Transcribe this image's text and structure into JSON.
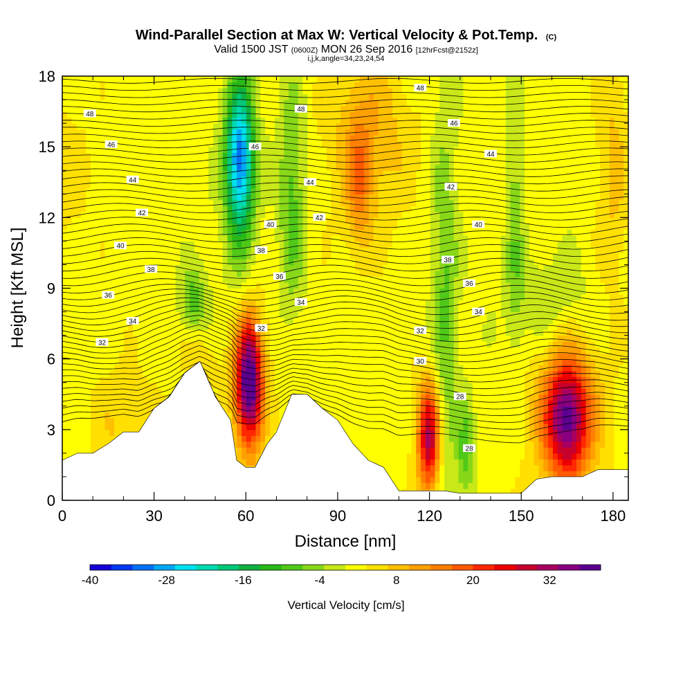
{
  "chart_data": {
    "type": "heatmap",
    "title": "Wind-Parallel Section at Max W: Vertical Velocity & Pot.Temp.",
    "title_mark": "(C)",
    "subtitle_valid": "Valid 1500 JST",
    "subtitle_utc": "(0600Z)",
    "subtitle_date": "MON 26 Sep 2016",
    "subtitle_fcst": "[12hrFcst@2152z]",
    "subtitle_indices": "i,j,k,angle=34,23,24,54",
    "xlabel": "Distance [nm]",
    "ylabel": "Height [Kft MSL]",
    "xlim": [
      0,
      185
    ],
    "ylim": [
      0,
      18
    ],
    "x_ticks": [
      "0",
      "30",
      "60",
      "90",
      "120",
      "150",
      "180"
    ],
    "y_ticks": [
      "0",
      "3",
      "6",
      "9",
      "12",
      "15",
      "18"
    ],
    "colorbar": {
      "title": "Vertical Velocity [cm/s]",
      "range": [
        -40,
        40
      ],
      "tick_labels": [
        "-40",
        "-28",
        "-16",
        "-4",
        "8",
        "20",
        "32"
      ],
      "colors": [
        "#1500d8",
        "#0038f0",
        "#0070f4",
        "#00a8f6",
        "#00e0f0",
        "#00d8b0",
        "#00c878",
        "#10b040",
        "#28b818",
        "#50c818",
        "#88d818",
        "#c8e818",
        "#ffff00",
        "#ffe000",
        "#ffc000",
        "#ffa000",
        "#ff8000",
        "#ff5a00",
        "#ff2800",
        "#ec0000",
        "#c8002c",
        "#a80060",
        "#880080",
        "#5c0090"
      ]
    },
    "terrain_profile": [
      [
        0,
        1.7
      ],
      [
        5,
        2.0
      ],
      [
        10,
        2.0
      ],
      [
        15,
        2.4
      ],
      [
        20,
        2.9
      ],
      [
        25,
        2.9
      ],
      [
        30,
        3.9
      ],
      [
        35,
        4.4
      ],
      [
        40,
        5.4
      ],
      [
        45,
        5.9
      ],
      [
        50,
        4.4
      ],
      [
        55,
        3.4
      ],
      [
        57,
        1.7
      ],
      [
        60,
        1.4
      ],
      [
        63,
        1.4
      ],
      [
        67,
        2.4
      ],
      [
        70,
        2.9
      ],
      [
        75,
        4.5
      ],
      [
        80,
        4.5
      ],
      [
        85,
        3.9
      ],
      [
        90,
        3.4
      ],
      [
        95,
        2.4
      ],
      [
        100,
        1.7
      ],
      [
        105,
        1.4
      ],
      [
        110,
        0.4
      ],
      [
        120,
        0.4
      ],
      [
        125,
        0.4
      ],
      [
        130,
        0.3
      ],
      [
        140,
        0.3
      ],
      [
        150,
        0.3
      ],
      [
        155,
        0.9
      ],
      [
        160,
        1.0
      ],
      [
        170,
        1.0
      ],
      [
        175,
        1.3
      ],
      [
        185,
        1.3
      ]
    ],
    "vertical_velocity_features": [
      {
        "x": 61,
        "z": 5.0,
        "sx": 3,
        "sz": 1.8,
        "w": 36
      },
      {
        "x": 61,
        "z": 4.8,
        "sx": 5,
        "sz": 2.8,
        "w": 6
      },
      {
        "x": 120,
        "z": 2.6,
        "sx": 2.5,
        "sz": 1.6,
        "w": 24
      },
      {
        "x": 120,
        "z": 2.7,
        "sx": 4,
        "sz": 2.4,
        "w": 6
      },
      {
        "x": 165,
        "z": 3.5,
        "sx": 5,
        "sz": 1.7,
        "w": 30
      },
      {
        "x": 165,
        "z": 3.5,
        "sx": 9,
        "sz": 2.8,
        "w": 8
      },
      {
        "x": 58,
        "z": 14.5,
        "sx": 3,
        "sz": 2.0,
        "w": -24
      },
      {
        "x": 58,
        "z": 14.0,
        "sx": 4,
        "sz": 3.5,
        "w": -10
      },
      {
        "x": 75,
        "z": 13.0,
        "sx": 3,
        "sz": 3.5,
        "w": -10
      },
      {
        "x": 97,
        "z": 13.5,
        "sx": 3,
        "sz": 2.0,
        "w": 10
      },
      {
        "x": 100,
        "z": 15.5,
        "sx": 10,
        "sz": 2.8,
        "w": 8
      },
      {
        "x": 125,
        "z": 7.5,
        "sx": 3,
        "sz": 7.0,
        "w": -9
      },
      {
        "x": 132,
        "z": 2.0,
        "sx": 2,
        "sz": 1.5,
        "w": -10
      },
      {
        "x": 43,
        "z": 8.5,
        "sx": 3,
        "sz": 1.0,
        "w": -10
      },
      {
        "x": 45,
        "z": 6.0,
        "sx": 4,
        "sz": 0.8,
        "w": 5
      },
      {
        "x": 148,
        "z": 12.0,
        "sx": 2,
        "sz": 4.0,
        "w": -7
      },
      {
        "x": 180,
        "z": 14.0,
        "sx": 4,
        "sz": 4.0,
        "w": 6
      },
      {
        "x": 20,
        "z": 3.0,
        "sx": 8,
        "sz": 2.0,
        "w": 5
      },
      {
        "x": 0,
        "z": 14.0,
        "sx": 8,
        "sz": 3.0,
        "w": 3
      },
      {
        "x": 160,
        "z": 8.5,
        "sx": 10,
        "sz": 1.5,
        "w": -5
      }
    ],
    "potential_temperature_contours": [
      {
        "value": 28,
        "label": "28",
        "label_x": 133,
        "label_z": 2.2
      },
      {
        "value": 28,
        "label": "28",
        "label_x": 130,
        "label_z": 4.4
      },
      {
        "value": 30,
        "label": "30",
        "label_x": 117,
        "label_z": 5.9
      },
      {
        "value": 32,
        "label": "32",
        "label_x": 13,
        "label_z": 6.7
      },
      {
        "value": 32,
        "label": "32",
        "label_x": 65,
        "label_z": 7.3
      },
      {
        "value": 32,
        "label": "32",
        "label_x": 117,
        "label_z": 7.2
      },
      {
        "value": 34,
        "label": "34",
        "label_x": 23,
        "label_z": 7.6
      },
      {
        "value": 34,
        "label": "34",
        "label_x": 78,
        "label_z": 8.4
      },
      {
        "value": 34,
        "label": "34",
        "label_x": 136,
        "label_z": 8.0
      },
      {
        "value": 36,
        "label": "36",
        "label_x": 15,
        "label_z": 8.7
      },
      {
        "value": 36,
        "label": "36",
        "label_x": 71,
        "label_z": 9.5
      },
      {
        "value": 36,
        "label": "36",
        "label_x": 133,
        "label_z": 9.2
      },
      {
        "value": 38,
        "label": "38",
        "label_x": 29,
        "label_z": 9.8
      },
      {
        "value": 38,
        "label": "38",
        "label_x": 65,
        "label_z": 10.6
      },
      {
        "value": 38,
        "label": "38",
        "label_x": 126,
        "label_z": 10.2
      },
      {
        "value": 40,
        "label": "40",
        "label_x": 19,
        "label_z": 10.8
      },
      {
        "value": 40,
        "label": "40",
        "label_x": 68,
        "label_z": 11.7
      },
      {
        "value": 40,
        "label": "40",
        "label_x": 136,
        "label_z": 11.7
      },
      {
        "value": 42,
        "label": "42",
        "label_x": 26,
        "label_z": 12.2
      },
      {
        "value": 42,
        "label": "42",
        "label_x": 84,
        "label_z": 12.0
      },
      {
        "value": 42,
        "label": "42",
        "label_x": 127,
        "label_z": 13.3
      },
      {
        "value": 44,
        "label": "44",
        "label_x": 23,
        "label_z": 13.6
      },
      {
        "value": 44,
        "label": "44",
        "label_x": 81,
        "label_z": 13.5
      },
      {
        "value": 44,
        "label": "44",
        "label_x": 140,
        "label_z": 14.7
      },
      {
        "value": 46,
        "label": "46",
        "label_x": 16,
        "label_z": 15.1
      },
      {
        "value": 46,
        "label": "46",
        "label_x": 63,
        "label_z": 15.0
      },
      {
        "value": 46,
        "label": "46",
        "label_x": 128,
        "label_z": 16.0
      },
      {
        "value": 48,
        "label": "48",
        "label_x": 9,
        "label_z": 16.4
      },
      {
        "value": 48,
        "label": "48",
        "label_x": 78,
        "label_z": 16.6
      },
      {
        "value": 48,
        "label": "48",
        "label_x": 117,
        "label_z": 17.5
      }
    ]
  }
}
